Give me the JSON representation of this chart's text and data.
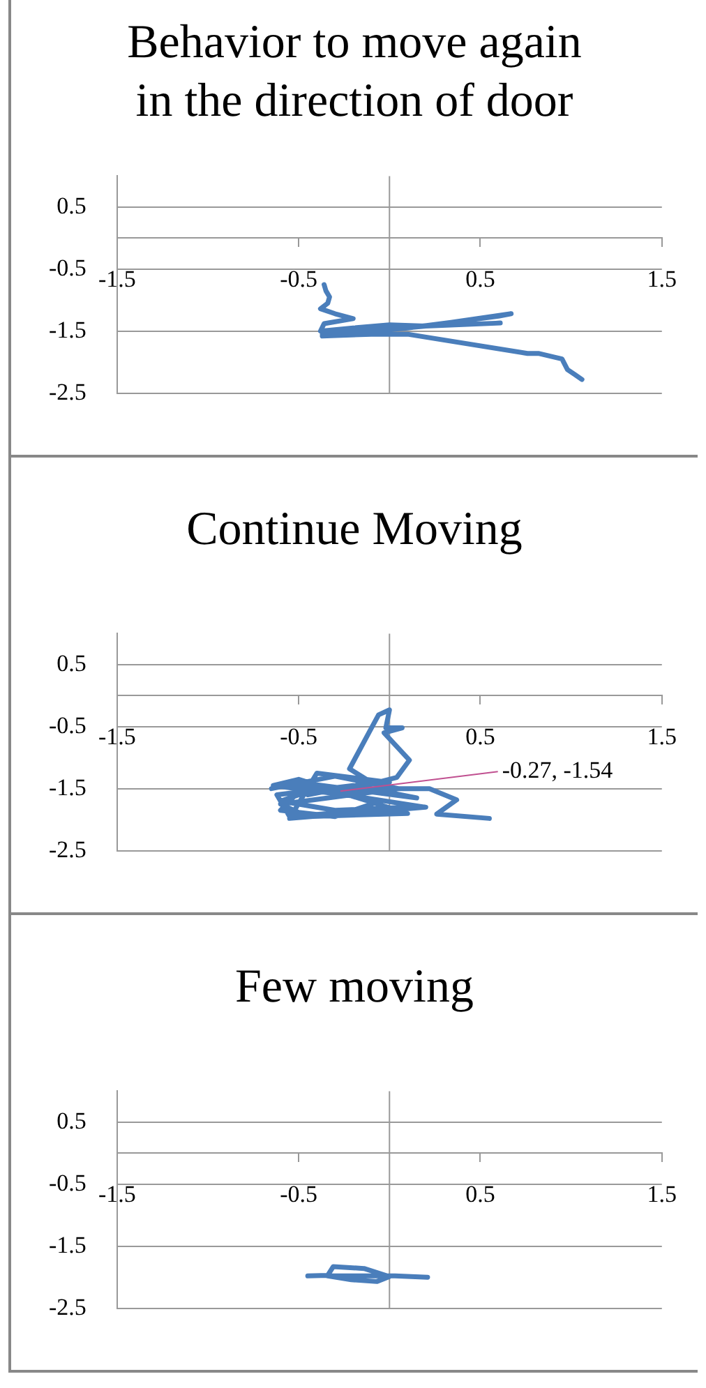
{
  "chart_data": [
    {
      "type": "line",
      "title": "Behavior to move again in the direction of door",
      "xlim": [
        -1.5,
        1.5
      ],
      "xticks": [
        -1.5,
        -0.5,
        0.5,
        1.5
      ],
      "ylim": [
        -2.5,
        1
      ],
      "yticks": [
        -2.5,
        -1.5,
        -0.5,
        0.5
      ],
      "grid": "y",
      "marker": "none",
      "legend": false,
      "series": [
        {
          "color": "#4a7ebb",
          "x": [
            -0.36,
            -0.35,
            -0.33,
            -0.34,
            -0.38,
            -0.3,
            -0.2,
            -0.36,
            -0.38,
            -0.2,
            0.0,
            0.2,
            0.67,
            0.6,
            0.1,
            -0.3,
            -0.37,
            -0.2,
            0.0,
            0.61,
            0.2,
            -0.1,
            -0.37,
            -0.1,
            0.1,
            0.76,
            0.82,
            0.95,
            0.98,
            1.02,
            1.06
          ],
          "values": [
            -0.75,
            -0.85,
            -0.95,
            -1.05,
            -1.14,
            -1.22,
            -1.3,
            -1.38,
            -1.5,
            -1.45,
            -1.4,
            -1.42,
            -1.22,
            -1.26,
            -1.45,
            -1.55,
            -1.55,
            -1.5,
            -1.44,
            -1.37,
            -1.42,
            -1.5,
            -1.58,
            -1.55,
            -1.55,
            -1.86,
            -1.86,
            -1.95,
            -2.12,
            -2.2,
            -2.28
          ]
        }
      ]
    },
    {
      "type": "line",
      "title": "Continue Moving",
      "xlim": [
        -1.5,
        1.5
      ],
      "xticks": [
        -1.5,
        -0.5,
        0.5,
        1.5
      ],
      "ylim": [
        -2.5,
        1
      ],
      "yticks": [
        -2.5,
        -1.5,
        -0.5,
        0.5
      ],
      "grid": "y",
      "marker": "none",
      "legend": false,
      "annotations": [
        {
          "text": "-0.27, -1.54",
          "x": -0.27,
          "y": -1.54
        }
      ],
      "series": [
        {
          "color": "#4a7ebb",
          "x": [
            0.55,
            0.26,
            0.37,
            0.22,
            0.0,
            -0.45,
            -0.6,
            -0.3,
            0.1,
            -0.55,
            -0.62,
            -0.2,
            0.15,
            -0.5,
            -0.65,
            -0.3,
            0.05,
            -0.6,
            -0.45,
            0.1,
            -0.5,
            -0.64,
            -0.2,
            0.2,
            -0.55,
            -0.4,
            0.0,
            -0.5,
            -0.6,
            -0.3,
            -0.05,
            -0.55,
            -0.45,
            -0.1,
            -0.22,
            -0.11,
            -0.06,
            0.0,
            -0.02,
            0.07,
            -0.03,
            0.11,
            0.04,
            -0.2
          ],
          "values": [
            -1.98,
            -1.91,
            -1.68,
            -1.5,
            -1.5,
            -1.55,
            -1.7,
            -1.85,
            -1.8,
            -1.95,
            -1.6,
            -1.45,
            -1.65,
            -1.4,
            -1.5,
            -1.3,
            -1.5,
            -1.75,
            -1.95,
            -1.9,
            -1.35,
            -1.45,
            -1.62,
            -1.8,
            -1.98,
            -1.25,
            -1.4,
            -1.55,
            -1.85,
            -1.95,
            -1.7,
            -1.4,
            -1.6,
            -1.4,
            -1.18,
            -0.58,
            -0.31,
            -0.23,
            -0.52,
            -0.52,
            -0.6,
            -1.04,
            -1.32,
            -1.5
          ]
        }
      ]
    },
    {
      "type": "line",
      "title": "Few moving",
      "xlim": [
        -1.5,
        1.5
      ],
      "xticks": [
        -1.5,
        -0.5,
        0.5,
        1.5
      ],
      "ylim": [
        -2.5,
        1
      ],
      "yticks": [
        -2.5,
        -1.5,
        -0.5,
        0.5
      ],
      "grid": "y",
      "marker": "none",
      "legend": false,
      "series": [
        {
          "color": "#4a7ebb",
          "x": [
            -0.45,
            -0.34,
            -0.31,
            -0.14,
            0.0,
            -0.07,
            -0.21,
            -0.34,
            0.03,
            0.21
          ],
          "values": [
            -1.98,
            -1.97,
            -1.83,
            -1.86,
            -1.99,
            -2.07,
            -2.04,
            -1.98,
            -1.98,
            -2.0
          ]
        }
      ]
    }
  ]
}
